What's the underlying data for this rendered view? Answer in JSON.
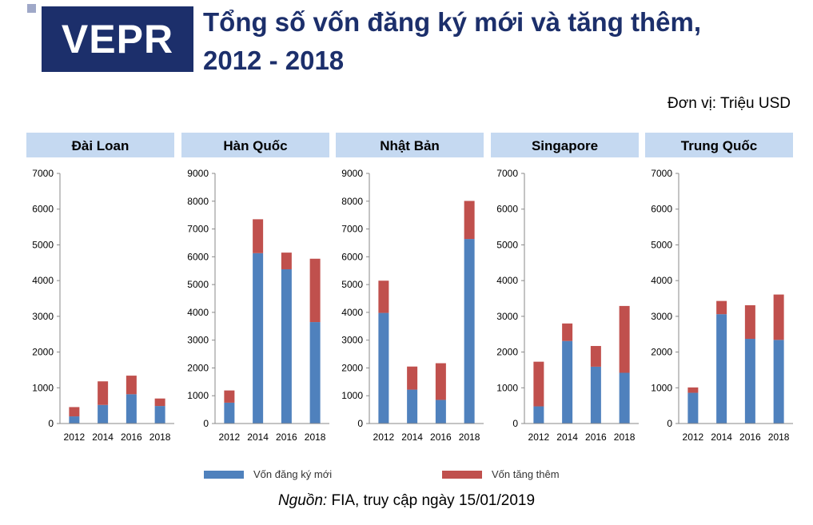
{
  "header": {
    "logo_text": "VEPR",
    "title_line1": "Tổng số vốn đăng ký mới và tăng thêm,",
    "title_line2": "2012 - 2018",
    "unit_label": "Đơn vị: Triệu USD"
  },
  "colors": {
    "new": "#4f81bd",
    "added": "#c0504d",
    "panel_header": "#c5d9f1"
  },
  "chart_data": [
    {
      "type": "bar",
      "stacked": true,
      "title": "Đài Loan",
      "categories": [
        "2012",
        "2014",
        "2016",
        "2018"
      ],
      "ylim": [
        0,
        7000
      ],
      "yticks": [
        0,
        1000,
        2000,
        3000,
        4000,
        5000,
        6000,
        7000
      ],
      "series": [
        {
          "name": "Vốn đăng ký mới",
          "values": [
            200,
            520,
            820,
            490
          ]
        },
        {
          "name": "Vốn tăng thêm",
          "values": [
            260,
            660,
            520,
            210
          ]
        }
      ]
    },
    {
      "type": "bar",
      "stacked": true,
      "title": "Hàn Quốc",
      "categories": [
        "2012",
        "2014",
        "2016",
        "2018"
      ],
      "ylim": [
        0,
        9000
      ],
      "yticks": [
        0,
        1000,
        2000,
        3000,
        4000,
        5000,
        6000,
        7000,
        8000,
        9000
      ],
      "series": [
        {
          "name": "Vốn đăng ký mới",
          "values": [
            750,
            6130,
            5550,
            3650
          ]
        },
        {
          "name": "Vốn tăng thêm",
          "values": [
            440,
            1220,
            600,
            2280
          ]
        }
      ]
    },
    {
      "type": "bar",
      "stacked": true,
      "title": "Nhật Bản",
      "categories": [
        "2012",
        "2014",
        "2016",
        "2018"
      ],
      "ylim": [
        0,
        9000
      ],
      "yticks": [
        0,
        1000,
        2000,
        3000,
        4000,
        5000,
        6000,
        7000,
        8000,
        9000
      ],
      "series": [
        {
          "name": "Vốn đăng ký mới",
          "values": [
            3980,
            1220,
            850,
            6640
          ]
        },
        {
          "name": "Vốn tăng thêm",
          "values": [
            1160,
            830,
            1320,
            1370
          ]
        }
      ]
    },
    {
      "type": "bar",
      "stacked": true,
      "title": "Singapore",
      "categories": [
        "2012",
        "2014",
        "2016",
        "2018"
      ],
      "ylim": [
        0,
        7000
      ],
      "yticks": [
        0,
        1000,
        2000,
        3000,
        4000,
        5000,
        6000,
        7000
      ],
      "series": [
        {
          "name": "Vốn đăng ký mới",
          "values": [
            480,
            2310,
            1590,
            1420
          ]
        },
        {
          "name": "Vốn tăng thêm",
          "values": [
            1250,
            490,
            580,
            1870
          ]
        }
      ]
    },
    {
      "type": "bar",
      "stacked": true,
      "title": "Trung Quốc",
      "categories": [
        "2012",
        "2014",
        "2016",
        "2018"
      ],
      "ylim": [
        0,
        7000
      ],
      "yticks": [
        0,
        1000,
        2000,
        3000,
        4000,
        5000,
        6000,
        7000
      ],
      "series": [
        {
          "name": "Vốn đăng ký mới",
          "values": [
            860,
            3060,
            2370,
            2340
          ]
        },
        {
          "name": "Vốn tăng thêm",
          "values": [
            150,
            370,
            940,
            1270
          ]
        }
      ]
    }
  ],
  "legend": {
    "new_label": "Vốn đăng ký mới",
    "added_label": "Vốn tăng thêm"
  },
  "source": {
    "label": "Nguồn:",
    "text": " FIA, truy cập ngày 15/01/2019"
  }
}
